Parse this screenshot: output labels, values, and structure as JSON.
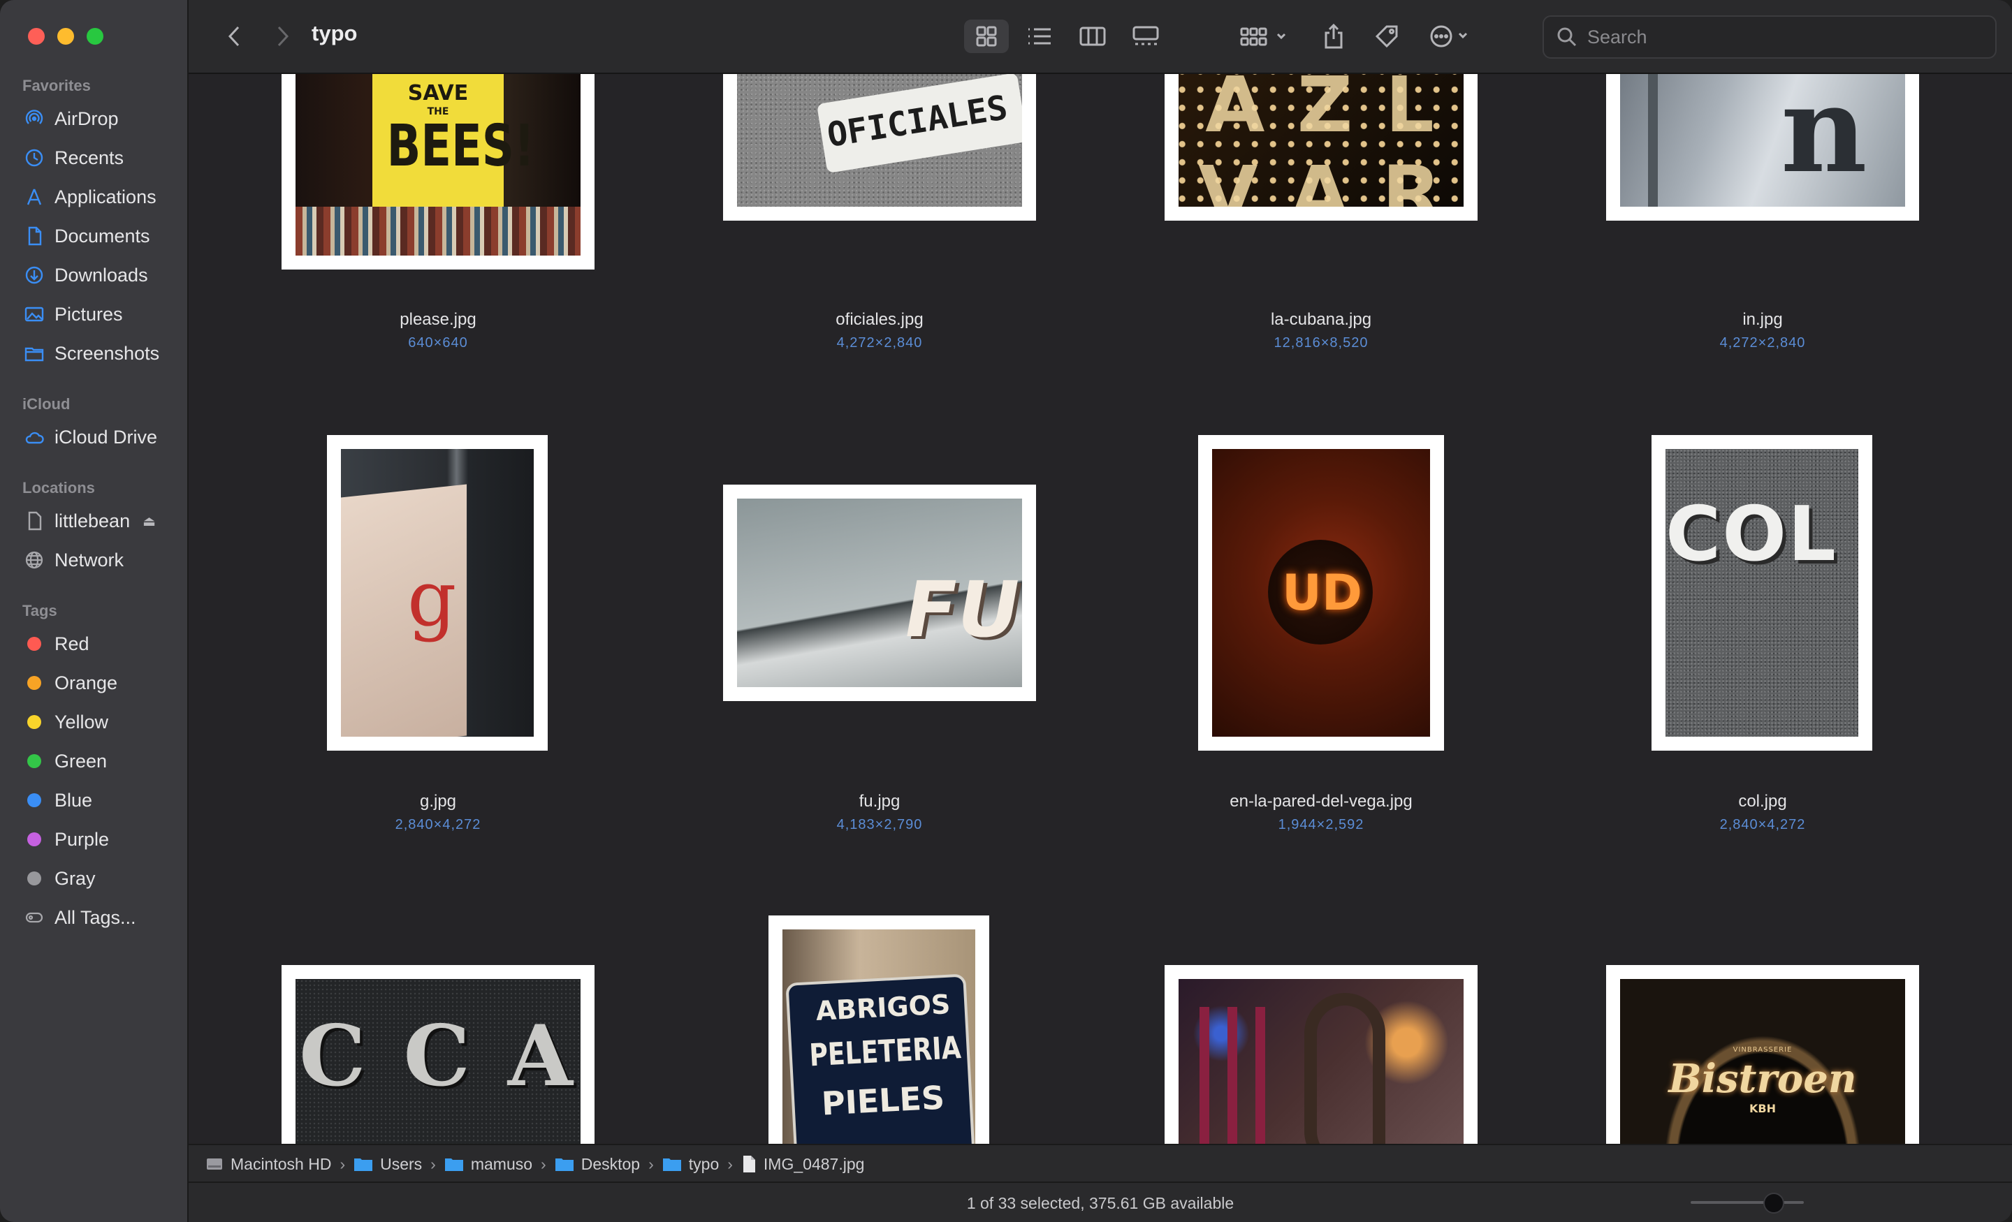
{
  "window": {
    "title": "typo"
  },
  "sidebar": {
    "favorites_label": "Favorites",
    "favorites": [
      {
        "label": "AirDrop",
        "icon": "airdrop-icon"
      },
      {
        "label": "Recents",
        "icon": "clock-icon"
      },
      {
        "label": "Applications",
        "icon": "applications-icon"
      },
      {
        "label": "Documents",
        "icon": "document-icon"
      },
      {
        "label": "Downloads",
        "icon": "download-icon"
      },
      {
        "label": "Pictures",
        "icon": "pictures-icon"
      },
      {
        "label": "Screenshots",
        "icon": "folder-icon"
      }
    ],
    "icloud_label": "iCloud",
    "icloud": [
      {
        "label": "iCloud Drive",
        "icon": "cloud-icon"
      }
    ],
    "locations_label": "Locations",
    "locations": [
      {
        "label": "littlebean",
        "icon": "disk-icon"
      },
      {
        "label": "Network",
        "icon": "globe-icon"
      }
    ],
    "tags_label": "Tags",
    "tags": [
      {
        "label": "Red",
        "color": "#ff5a52"
      },
      {
        "label": "Orange",
        "color": "#f7a325"
      },
      {
        "label": "Yellow",
        "color": "#f8d42b"
      },
      {
        "label": "Green",
        "color": "#33c648"
      },
      {
        "label": "Blue",
        "color": "#3a8ef5"
      },
      {
        "label": "Purple",
        "color": "#c561e0"
      },
      {
        "label": "Gray",
        "color": "#98989c"
      }
    ],
    "all_tags_label": "All Tags..."
  },
  "toolbar": {
    "title": "typo",
    "search_placeholder": "Search"
  },
  "files": [
    {
      "name": "please.jpg",
      "dims": "640×640"
    },
    {
      "name": "oficiales.jpg",
      "dims": "4,272×2,840"
    },
    {
      "name": "la-cubana.jpg",
      "dims": "12,816×8,520"
    },
    {
      "name": "in.jpg",
      "dims": "4,272×2,840"
    },
    {
      "name": "g.jpg",
      "dims": "2,840×4,272"
    },
    {
      "name": "fu.jpg",
      "dims": "4,183×2,790"
    },
    {
      "name": "en-la-pared-del-vega.jpg",
      "dims": "1,944×2,592"
    },
    {
      "name": "col.jpg",
      "dims": "2,840×4,272"
    }
  ],
  "photo_text": {
    "please_top": "SAVE",
    "please_the": "THE",
    "please_main": "BEES!",
    "oficiales": "OFICIALES",
    "la_cubana": "A Z L V A R J",
    "in_letters": "n",
    "g_letter": "g",
    "fu": "FU",
    "ud": "UD",
    "col": "COL",
    "cca": "C C A",
    "abrigos_1": "ABRIGOS",
    "abrigos_2": "PELETERIA",
    "abrigos_3": "PIELES",
    "bistroen_small": "VINBRASSERIE",
    "bistroen": "Bistroen",
    "bistroen_kbh": "KBH"
  },
  "pathbar": {
    "crumbs": [
      "Macintosh HD",
      "Users",
      "mamuso",
      "Desktop",
      "typo",
      "IMG_0487.jpg"
    ],
    "separator": "›"
  },
  "status": {
    "text": "1 of 33 selected, 375.61 GB available"
  }
}
